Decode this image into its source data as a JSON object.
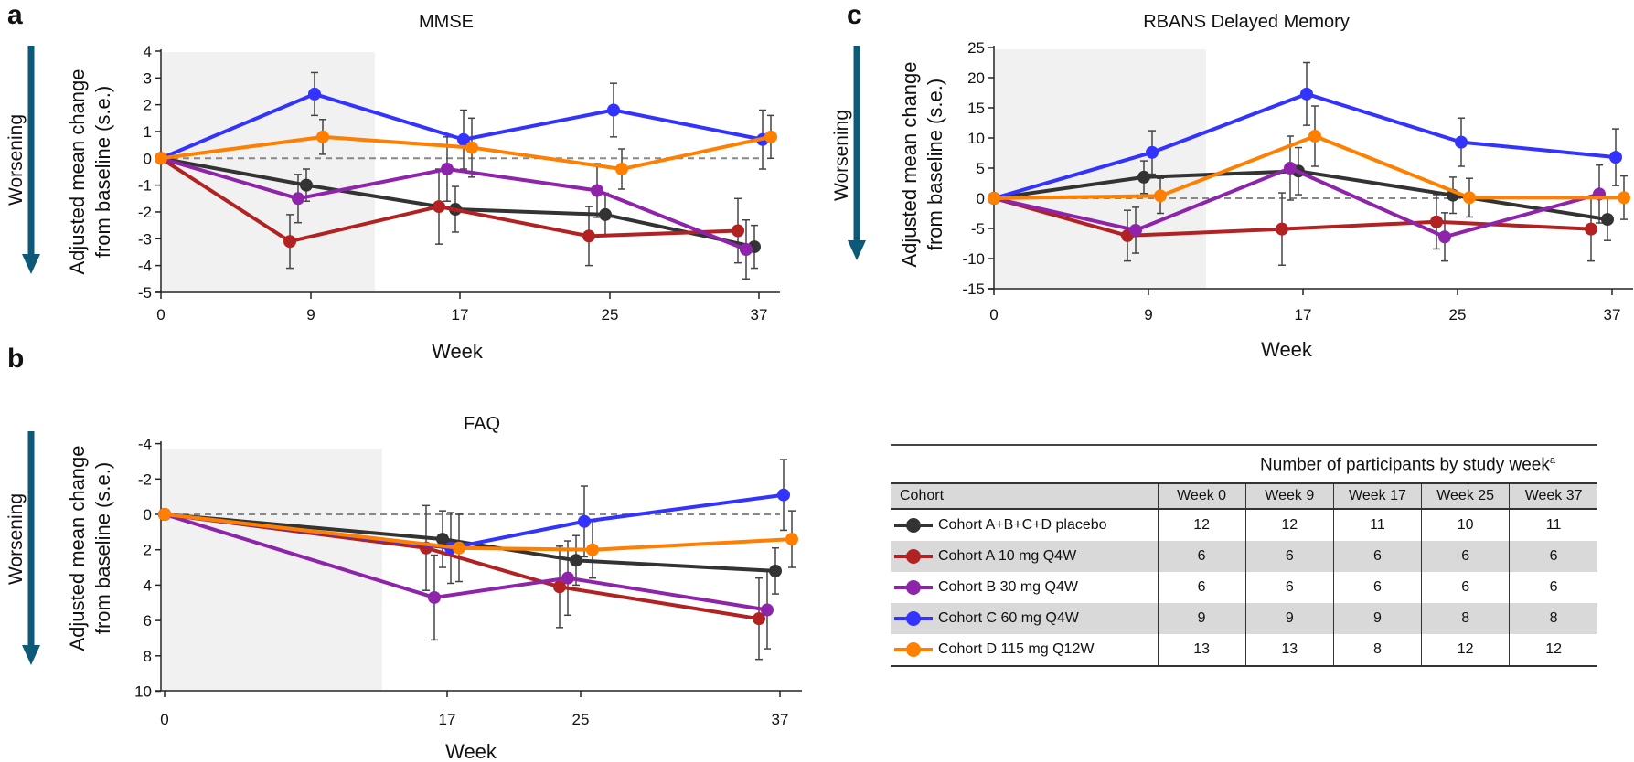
{
  "panel_labels": {
    "a": "a",
    "b": "b",
    "c": "c"
  },
  "worsening_label": "Worsening",
  "colors": {
    "placebo": "#333333",
    "cohort_a": "#b22222",
    "cohort_b": "#8e24aa",
    "cohort_c": "#3333ff",
    "cohort_d": "#ff7f00",
    "worsening_arrow": "#0d5a78",
    "shading": "#f1f1f1"
  },
  "chart_data": [
    {
      "panel": "a",
      "type": "line",
      "title": "MMSE",
      "xlabel": "Week",
      "ylabel_lines": [
        "Adjusted mean change",
        "from baseline (s.e.)"
      ],
      "x": [
        0,
        9,
        17,
        25,
        37
      ],
      "xtick_labels": [
        "0",
        "9",
        "17",
        "25",
        "37"
      ],
      "ylim": [
        -5,
        4
      ],
      "yticks": [
        4,
        3,
        2,
        1,
        0,
        -1,
        -2,
        -3,
        -4,
        -5
      ],
      "y_inverted": false,
      "reference_line": 0,
      "shaded_region_weeks": [
        0,
        12
      ],
      "series": [
        {
          "name": "Cohort A+B+C+D placebo",
          "key": "placebo",
          "values": [
            0,
            -1.0,
            -1.9,
            -2.1,
            -3.3
          ],
          "se": [
            0,
            0.6,
            0.85,
            0.8,
            0.8
          ]
        },
        {
          "name": "Cohort A 10 mg Q4W",
          "key": "cohort_a",
          "values": [
            0,
            -3.1,
            -1.8,
            -2.9,
            -2.7
          ],
          "se": [
            0,
            1.0,
            1.4,
            1.1,
            1.2
          ]
        },
        {
          "name": "Cohort B 30 mg Q4W",
          "key": "cohort_b",
          "values": [
            0,
            -1.5,
            -0.4,
            -1.2,
            -3.4
          ],
          "se": [
            0,
            0.9,
            1.2,
            1.0,
            1.1
          ]
        },
        {
          "name": "Cohort C 60 mg Q4W",
          "key": "cohort_c",
          "values": [
            0,
            2.4,
            0.7,
            1.8,
            0.7
          ],
          "se": [
            0,
            0.8,
            1.1,
            1.0,
            1.1
          ]
        },
        {
          "name": "Cohort D 115 mg Q12W",
          "key": "cohort_d",
          "values": [
            0,
            0.8,
            0.4,
            -0.4,
            0.8
          ],
          "se": [
            0,
            0.65,
            1.1,
            0.75,
            0.8
          ]
        }
      ]
    },
    {
      "panel": "b",
      "type": "line",
      "title": "FAQ",
      "xlabel": "Week",
      "ylabel_lines": [
        "Adjusted mean change",
        "from baseline (s.e.)"
      ],
      "x": [
        0,
        17,
        25,
        37
      ],
      "xtick_labels": [
        "0",
        "17",
        "25",
        "37"
      ],
      "ylim": [
        -4,
        10
      ],
      "yticks": [
        -4,
        -2,
        0,
        2,
        4,
        6,
        8,
        10
      ],
      "y_inverted": true,
      "reference_line": 0,
      "shaded_region_weeks": [
        0,
        12
      ],
      "series": [
        {
          "name": "Cohort A+B+C+D placebo",
          "key": "placebo",
          "values": [
            0,
            1.4,
            2.6,
            3.2
          ],
          "se": [
            0,
            1.6,
            1.4,
            1.3
          ]
        },
        {
          "name": "Cohort A 10 mg Q4W",
          "key": "cohort_a",
          "values": [
            0,
            1.9,
            4.1,
            5.9
          ],
          "se": [
            0,
            2.4,
            2.3,
            2.3
          ]
        },
        {
          "name": "Cohort B 30 mg Q4W",
          "key": "cohort_b",
          "values": [
            0,
            4.7,
            3.6,
            5.4
          ],
          "se": [
            0,
            2.4,
            2.1,
            2.2
          ]
        },
        {
          "name": "Cohort C 60 mg Q4W",
          "key": "cohort_c",
          "values": [
            0,
            1.9,
            0.4,
            -1.1
          ],
          "se": [
            0,
            2.0,
            2.0,
            2.0
          ]
        },
        {
          "name": "Cohort D 115 mg Q12W",
          "key": "cohort_d",
          "values": [
            0,
            1.9,
            2.0,
            1.4
          ],
          "se": [
            0,
            1.9,
            1.6,
            1.6
          ]
        }
      ]
    },
    {
      "panel": "c",
      "type": "line",
      "title": "RBANS Delayed Memory",
      "xlabel": "Week",
      "ylabel_lines": [
        "Adjusted mean change",
        "from baseline (s.e.)"
      ],
      "x": [
        0,
        9,
        17,
        25,
        37
      ],
      "xtick_labels": [
        "0",
        "9",
        "17",
        "25",
        "37"
      ],
      "ylim": [
        -15,
        25
      ],
      "yticks": [
        25,
        20,
        15,
        10,
        5,
        0,
        -5,
        -10,
        -15
      ],
      "y_inverted": false,
      "reference_line": 0,
      "shaded_region_weeks": [
        0,
        12
      ],
      "series": [
        {
          "name": "Cohort A+B+C+D placebo",
          "key": "placebo",
          "values": [
            0,
            3.5,
            4.5,
            0.5,
            -3.5
          ],
          "se": [
            0,
            2.7,
            3.9,
            3.0,
            3.5
          ]
        },
        {
          "name": "Cohort A 10 mg Q4W",
          "key": "cohort_a",
          "values": [
            0,
            -6.2,
            -5.1,
            -3.9,
            -5.1
          ],
          "se": [
            0,
            4.2,
            6.0,
            4.5,
            5.3
          ]
        },
        {
          "name": "Cohort B 30 mg Q4W",
          "key": "cohort_b",
          "values": [
            0,
            -5.3,
            5.0,
            -6.4,
            0.7
          ],
          "se": [
            0,
            3.8,
            5.3,
            4.0,
            4.8
          ]
        },
        {
          "name": "Cohort C 60 mg Q4W",
          "key": "cohort_c",
          "values": [
            0,
            7.6,
            17.3,
            9.3,
            6.8
          ],
          "se": [
            0,
            3.6,
            5.2,
            4.0,
            4.7
          ]
        },
        {
          "name": "Cohort D 115 mg Q12W",
          "key": "cohort_d",
          "values": [
            0,
            0.4,
            10.3,
            0.1,
            0.1
          ],
          "se": [
            0,
            2.9,
            5.0,
            3.2,
            3.6
          ]
        }
      ]
    }
  ],
  "table": {
    "caption": "Number of participants by study week",
    "caption_superscript": "a",
    "headers": [
      "Cohort",
      "Week 0",
      "Week 9",
      "Week 17",
      "Week 25",
      "Week 37"
    ],
    "rows": [
      {
        "key": "placebo",
        "cohort": "Cohort A+B+C+D placebo",
        "counts": [
          "12",
          "12",
          "11",
          "10",
          "11"
        ]
      },
      {
        "key": "cohort_a",
        "cohort": "Cohort A 10 mg Q4W",
        "counts": [
          "6",
          "6",
          "6",
          "6",
          "6"
        ]
      },
      {
        "key": "cohort_b",
        "cohort": "Cohort B 30 mg Q4W",
        "counts": [
          "6",
          "6",
          "6",
          "6",
          "6"
        ]
      },
      {
        "key": "cohort_c",
        "cohort": "Cohort C 60 mg Q4W",
        "counts": [
          "9",
          "9",
          "9",
          "8",
          "8"
        ]
      },
      {
        "key": "cohort_d",
        "cohort": "Cohort D 115 mg Q12W",
        "counts": [
          "13",
          "13",
          "8",
          "12",
          "12"
        ]
      }
    ]
  }
}
